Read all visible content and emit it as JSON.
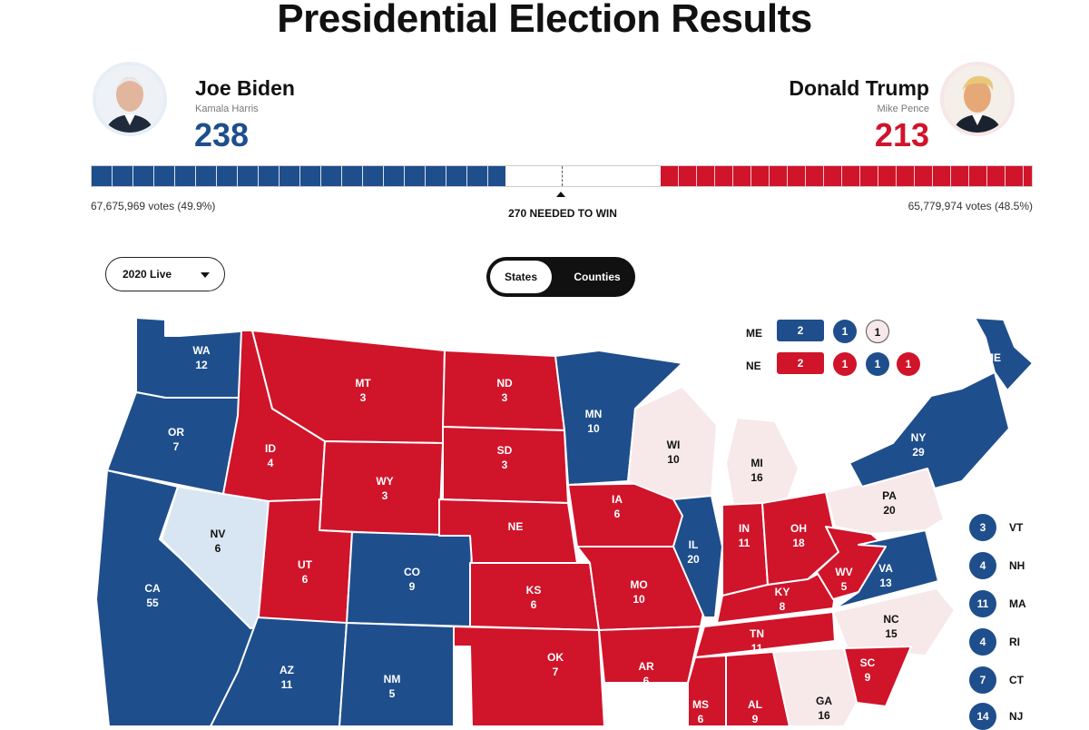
{
  "title": "Presidential Election Results",
  "candidates": {
    "dem": {
      "name": "Joe Biden",
      "running_mate": "Kamala Harris",
      "electoral_votes": "238",
      "popular_votes": "67,675,969 votes (49.9%)",
      "color": "#1f4e8c"
    },
    "rep": {
      "name": "Donald Trump",
      "running_mate": "Mike Pence",
      "electoral_votes": "213",
      "popular_votes": "65,779,974 votes (48.5%)",
      "color": "#d0142a"
    }
  },
  "needed_to_win": "270 NEEDED TO WIN",
  "controls": {
    "election_select": "2020 Live",
    "view_toggle": {
      "states": "States",
      "counties": "Counties",
      "selected": "States"
    }
  },
  "colors": {
    "dem": "#1f4e8c",
    "rep": "#d0142a",
    "lean_dem": "#d8e6f3",
    "undecided": "#f7e8ea"
  },
  "states": [
    {
      "abbr": "WA",
      "ev": "12",
      "status": "dem"
    },
    {
      "abbr": "OR",
      "ev": "7",
      "status": "dem"
    },
    {
      "abbr": "CA",
      "ev": "55",
      "status": "dem"
    },
    {
      "abbr": "NV",
      "ev": "6",
      "status": "lean_dem"
    },
    {
      "abbr": "ID",
      "ev": "4",
      "status": "rep"
    },
    {
      "abbr": "MT",
      "ev": "3",
      "status": "rep"
    },
    {
      "abbr": "WY",
      "ev": "3",
      "status": "rep"
    },
    {
      "abbr": "UT",
      "ev": "6",
      "status": "rep"
    },
    {
      "abbr": "CO",
      "ev": "9",
      "status": "dem"
    },
    {
      "abbr": "AZ",
      "ev": "11",
      "status": "dem"
    },
    {
      "abbr": "NM",
      "ev": "5",
      "status": "dem"
    },
    {
      "abbr": "ND",
      "ev": "3",
      "status": "rep"
    },
    {
      "abbr": "SD",
      "ev": "3",
      "status": "rep"
    },
    {
      "abbr": "NE",
      "ev": "",
      "status": "rep"
    },
    {
      "abbr": "KS",
      "ev": "6",
      "status": "rep"
    },
    {
      "abbr": "OK",
      "ev": "7",
      "status": "rep"
    },
    {
      "abbr": "MN",
      "ev": "10",
      "status": "dem"
    },
    {
      "abbr": "IA",
      "ev": "6",
      "status": "rep"
    },
    {
      "abbr": "MO",
      "ev": "10",
      "status": "rep"
    },
    {
      "abbr": "AR",
      "ev": "6",
      "status": "rep"
    },
    {
      "abbr": "WI",
      "ev": "10",
      "status": "undecided"
    },
    {
      "abbr": "IL",
      "ev": "20",
      "status": "dem"
    },
    {
      "abbr": "MI",
      "ev": "16",
      "status": "undecided"
    },
    {
      "abbr": "IN",
      "ev": "11",
      "status": "rep"
    },
    {
      "abbr": "OH",
      "ev": "18",
      "status": "rep"
    },
    {
      "abbr": "KY",
      "ev": "8",
      "status": "rep"
    },
    {
      "abbr": "TN",
      "ev": "11",
      "status": "rep"
    },
    {
      "abbr": "MS",
      "ev": "6",
      "status": "rep"
    },
    {
      "abbr": "AL",
      "ev": "9",
      "status": "rep"
    },
    {
      "abbr": "WV",
      "ev": "5",
      "status": "rep"
    },
    {
      "abbr": "VA",
      "ev": "13",
      "status": "dem"
    },
    {
      "abbr": "NC",
      "ev": "15",
      "status": "undecided"
    },
    {
      "abbr": "SC",
      "ev": "9",
      "status": "rep"
    },
    {
      "abbr": "GA",
      "ev": "16",
      "status": "undecided"
    },
    {
      "abbr": "PA",
      "ev": "20",
      "status": "undecided"
    },
    {
      "abbr": "NY",
      "ev": "29",
      "status": "dem"
    },
    {
      "abbr": "ME",
      "ev": "",
      "status": "dem"
    }
  ],
  "split_states": {
    "me": {
      "label": "ME",
      "statewide": "2",
      "districts": [
        {
          "value": "1",
          "status": "dem"
        },
        {
          "value": "1",
          "status": "undecided"
        }
      ]
    },
    "ne": {
      "label": "NE",
      "statewide": "2",
      "districts": [
        {
          "value": "1",
          "status": "rep"
        },
        {
          "value": "1",
          "status": "dem"
        },
        {
          "value": "1",
          "status": "rep"
        }
      ]
    }
  },
  "northeast_callouts": [
    {
      "abbr": "VT",
      "ev": "3"
    },
    {
      "abbr": "NH",
      "ev": "4"
    },
    {
      "abbr": "MA",
      "ev": "11"
    },
    {
      "abbr": "RI",
      "ev": "4"
    },
    {
      "abbr": "CT",
      "ev": "7"
    },
    {
      "abbr": "NJ",
      "ev": "14"
    }
  ]
}
